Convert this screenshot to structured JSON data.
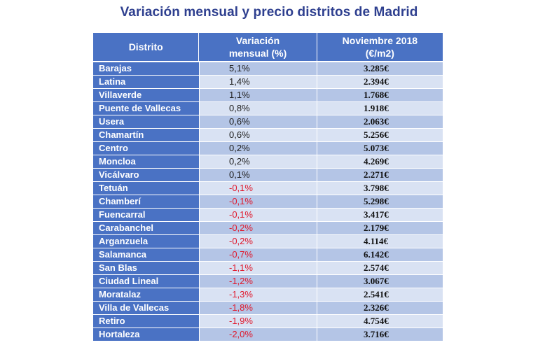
{
  "title": "Variación mensual y precio distritos de Madrid",
  "headers": {
    "distrito": "Distrito",
    "variacion_line1": "Variación",
    "variacion_line2": "mensual (%)",
    "precio_line1": "Noviembre 2018",
    "precio_line2": "(€/m2)"
  },
  "rows": [
    {
      "distrito": "Barajas",
      "variacion": "5,1%",
      "precio": "3.285€"
    },
    {
      "distrito": "Latina",
      "variacion": "1,4%",
      "precio": "2.394€"
    },
    {
      "distrito": "Villaverde",
      "variacion": "1,1%",
      "precio": "1.768€"
    },
    {
      "distrito": "Puente de Vallecas",
      "variacion": "0,8%",
      "precio": "1.918€"
    },
    {
      "distrito": "Usera",
      "variacion": "0,6%",
      "precio": "2.063€"
    },
    {
      "distrito": "Chamartín",
      "variacion": "0,6%",
      "precio": "5.256€"
    },
    {
      "distrito": "Centro",
      "variacion": "0,2%",
      "precio": "5.073€"
    },
    {
      "distrito": "Moncloa",
      "variacion": "0,2%",
      "precio": "4.269€"
    },
    {
      "distrito": "Vicálvaro",
      "variacion": "0,1%",
      "precio": "2.271€"
    },
    {
      "distrito": "Tetuán",
      "variacion": "-0,1%",
      "precio": "3.798€"
    },
    {
      "distrito": "Chamberí",
      "variacion": "-0,1%",
      "precio": "5.298€"
    },
    {
      "distrito": "Fuencarral",
      "variacion": "-0,1%",
      "precio": "3.417€"
    },
    {
      "distrito": "Carabanchel",
      "variacion": "-0,2%",
      "precio": "2.179€"
    },
    {
      "distrito": "Arganzuela",
      "variacion": "-0,2%",
      "precio": "4.114€"
    },
    {
      "distrito": "Salamanca",
      "variacion": "-0,7%",
      "precio": "6.142€"
    },
    {
      "distrito": "San Blas",
      "variacion": "-1,1%",
      "precio": "2.574€"
    },
    {
      "distrito": "Ciudad Lineal",
      "variacion": "-1,2%",
      "precio": "3.067€"
    },
    {
      "distrito": "Moratalaz",
      "variacion": "-1,3%",
      "precio": "2.541€"
    },
    {
      "distrito": "Villa de Vallecas",
      "variacion": "-1,8%",
      "precio": "2.326€"
    },
    {
      "distrito": "Retiro",
      "variacion": "-1,9%",
      "precio": "4.754€"
    },
    {
      "distrito": "Hortaleza",
      "variacion": "-2,0%",
      "precio": "3.716€"
    }
  ],
  "colors": {
    "header_blue": "#4a72c4",
    "row_light": "#d9e2f3",
    "row_mid": "#b4c5e6",
    "negative": "#e0182b",
    "title": "#2e3f8f"
  }
}
